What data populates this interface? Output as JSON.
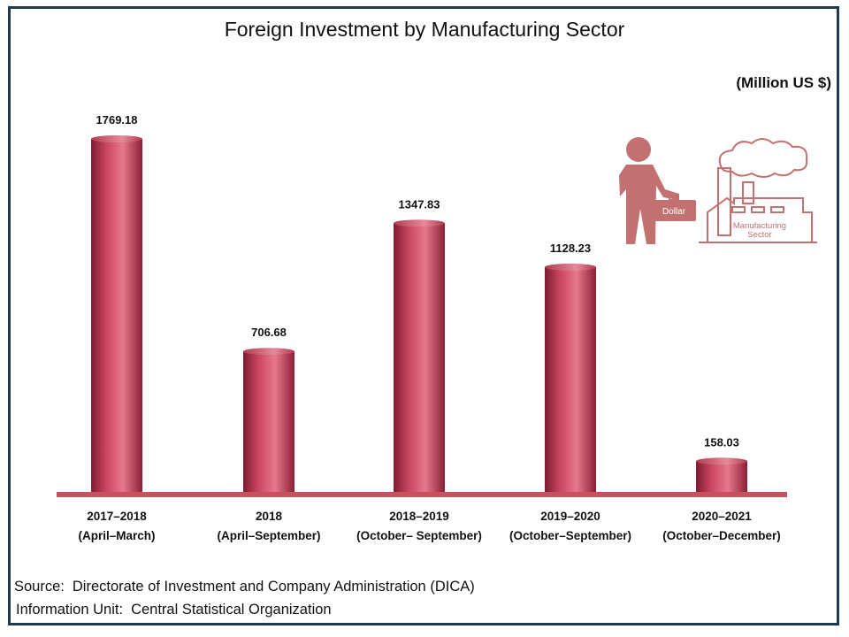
{
  "title": "Foreign Investment by Manufacturing Sector",
  "unit": "(Million US $)",
  "source": {
    "label": "Source:",
    "text": "Directorate of Investment and Company Administration (DICA)"
  },
  "info": {
    "label": "Information Unit:",
    "text": "Central Statistical Organization"
  },
  "illustration": {
    "bag_label": "Dollar",
    "factory_label_1": "Manufacturing",
    "factory_label_2": "Sector"
  },
  "colors": {
    "bar": "#c9475e",
    "bar_highlight": "#e7788a",
    "bar_dark": "#7e1c31",
    "baseline": "#c9505f",
    "illustration": "#c27070",
    "frame": "#1f3a4d"
  },
  "chart_data": {
    "type": "bar",
    "title": "Foreign Investment by Manufacturing Sector",
    "ylabel": "(Million US $)",
    "categories": [
      [
        "2017–2018",
        "(April–March)"
      ],
      [
        "2018",
        "(April–September)"
      ],
      [
        "2018–2019",
        "(October– September)"
      ],
      [
        "2019–2020",
        "(October–September)"
      ],
      [
        "2020–2021",
        "(October–December)"
      ]
    ],
    "values": [
      1769.18,
      706.68,
      1347.83,
      1128.23,
      158.03
    ],
    "value_labels": [
      "1769.18",
      "706.68",
      "1347.83",
      "1128.23",
      "158.03"
    ],
    "grid": false,
    "legend": "none"
  }
}
